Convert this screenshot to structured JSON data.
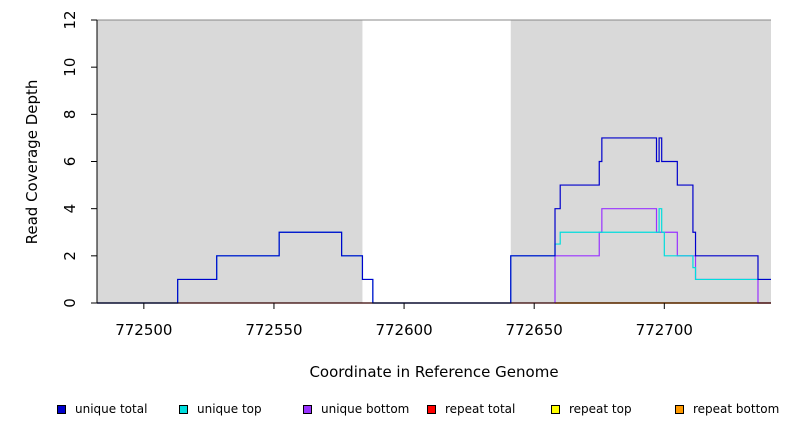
{
  "chart_data": {
    "type": "line",
    "title": "",
    "xlabel": "Coordinate in Reference Genome",
    "ylabel": "Read Coverage Depth",
    "xlim": [
      772482,
      772741
    ],
    "ylim": [
      0,
      12
    ],
    "x_ticks": [
      772500,
      772550,
      772600,
      772650,
      772700
    ],
    "x_tick_labels": [
      "772500",
      "772550",
      "772600",
      "772650",
      "772700"
    ],
    "y_ticks": [
      0,
      2,
      4,
      6,
      8,
      10,
      12
    ],
    "y_tick_labels": [
      "0",
      "2",
      "4",
      "6",
      "8",
      "10",
      "12"
    ],
    "shaded_regions": [
      {
        "x0": 772482,
        "x1": 772584,
        "color": "#d9d9d9"
      },
      {
        "x0": 772641,
        "x1": 772741,
        "color": "#d9d9d9"
      }
    ],
    "series": [
      {
        "name": "unique total",
        "color": "#0000cc",
        "style": "step",
        "points": [
          [
            772482,
            0
          ],
          [
            772513,
            0
          ],
          [
            772513,
            1
          ],
          [
            772528,
            1
          ],
          [
            772528,
            2
          ],
          [
            772552,
            2
          ],
          [
            772552,
            3
          ],
          [
            772576,
            3
          ],
          [
            772576,
            2
          ],
          [
            772584,
            2
          ],
          [
            772584,
            1
          ],
          [
            772588,
            1
          ],
          [
            772588,
            0
          ],
          [
            772641,
            0
          ],
          [
            772641,
            2
          ],
          [
            772658,
            2
          ],
          [
            772658,
            4
          ],
          [
            772660,
            4
          ],
          [
            772660,
            5
          ],
          [
            772675,
            5
          ],
          [
            772675,
            6
          ],
          [
            772676,
            6
          ],
          [
            772676,
            7
          ],
          [
            772697,
            7
          ],
          [
            772697,
            6
          ],
          [
            772698,
            6
          ],
          [
            772698,
            7
          ],
          [
            772699,
            7
          ],
          [
            772699,
            6
          ],
          [
            772705,
            6
          ],
          [
            772705,
            5
          ],
          [
            772711,
            5
          ],
          [
            772711,
            3
          ],
          [
            772712,
            3
          ],
          [
            772712,
            2
          ],
          [
            772736,
            2
          ],
          [
            772736,
            1
          ],
          [
            772741,
            1
          ]
        ]
      },
      {
        "name": "unique top",
        "color": "#00dddd",
        "style": "step",
        "points": [
          [
            772482,
            0
          ],
          [
            772513,
            0
          ],
          [
            772513,
            1
          ],
          [
            772528,
            1
          ],
          [
            772528,
            2
          ],
          [
            772552,
            2
          ],
          [
            772552,
            3
          ],
          [
            772576,
            3
          ],
          [
            772576,
            2
          ],
          [
            772584,
            2
          ],
          [
            772584,
            1
          ],
          [
            772588,
            1
          ],
          [
            772588,
            0
          ],
          [
            772641,
            0
          ],
          [
            772641,
            2
          ],
          [
            772658,
            2
          ],
          [
            772658,
            2.5
          ],
          [
            772660,
            2.5
          ],
          [
            772660,
            3
          ],
          [
            772698,
            3
          ],
          [
            772698,
            4
          ],
          [
            772699,
            4
          ],
          [
            772699,
            3
          ],
          [
            772700,
            3
          ],
          [
            772700,
            2
          ],
          [
            772711,
            2
          ],
          [
            772711,
            1.5
          ],
          [
            772712,
            1.5
          ],
          [
            772712,
            1
          ],
          [
            772741,
            1
          ]
        ]
      },
      {
        "name": "unique bottom",
        "color": "#9933ff",
        "style": "step",
        "points": [
          [
            772658,
            0
          ],
          [
            772658,
            2
          ],
          [
            772675,
            2
          ],
          [
            772675,
            3
          ],
          [
            772676,
            3
          ],
          [
            772676,
            4
          ],
          [
            772697,
            4
          ],
          [
            772697,
            3
          ],
          [
            772705,
            3
          ],
          [
            772705,
            2
          ],
          [
            772712,
            2
          ],
          [
            772712,
            1
          ],
          [
            772736,
            1
          ],
          [
            772736,
            0
          ],
          [
            772741,
            0
          ]
        ]
      },
      {
        "name": "repeat total",
        "color": "#ff0000",
        "style": "step",
        "points": [
          [
            772482,
            0
          ],
          [
            772741,
            0
          ]
        ]
      },
      {
        "name": "repeat top",
        "color": "#ffff00",
        "style": "step",
        "points": [
          [
            772658,
            0
          ],
          [
            772741,
            0
          ]
        ]
      },
      {
        "name": "repeat bottom",
        "color": "#ff9900",
        "style": "step",
        "points": [
          [
            772658,
            0
          ],
          [
            772741,
            0
          ]
        ]
      }
    ],
    "legend": [
      {
        "label": "unique total",
        "color": "#0000cc"
      },
      {
        "label": "unique top",
        "color": "#00dddd"
      },
      {
        "label": "unique bottom",
        "color": "#9933ff"
      },
      {
        "label": "repeat total",
        "color": "#ff0000"
      },
      {
        "label": "repeat top",
        "color": "#ffff00"
      },
      {
        "label": "repeat bottom",
        "color": "#ff9900"
      }
    ],
    "legend_placement": "bottom",
    "grid": false
  }
}
